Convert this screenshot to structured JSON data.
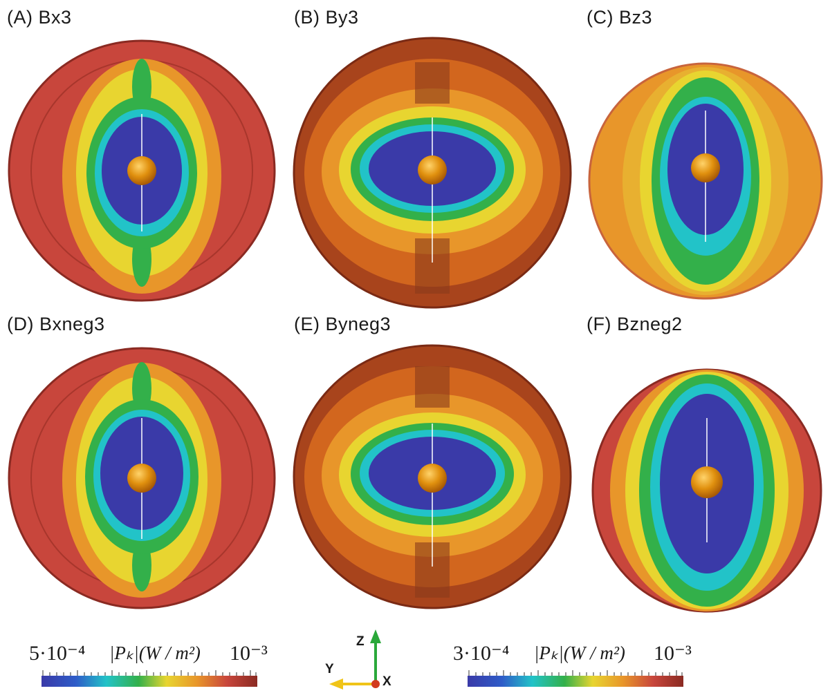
{
  "panels": [
    {
      "id": "A",
      "label": "(A) Bx3"
    },
    {
      "id": "B",
      "label": "(B) By3"
    },
    {
      "id": "C",
      "label": "(C) Bz3"
    },
    {
      "id": "D",
      "label": "(D) Bxneg3"
    },
    {
      "id": "E",
      "label": "(E) Byneg3"
    },
    {
      "id": "F",
      "label": "(F) Bzneg2"
    }
  ],
  "colorbars": [
    {
      "min_label": "5·10⁻⁴",
      "max_label": "10⁻³",
      "title": "|Pₖ|(W / m²)"
    },
    {
      "min_label": "3·10⁻⁴",
      "max_label": "10⁻³",
      "title": "|Pₖ|(W / m²)"
    }
  ],
  "axes": {
    "z": "Z",
    "y": "Y",
    "x": "X"
  },
  "colors": {
    "low": "#3a3aa8",
    "cyan": "#22c3c8",
    "green": "#33b04a",
    "yellow": "#e8d530",
    "orange": "#e8962a",
    "red": "#c8463c",
    "darkred": "#8a2a22",
    "sphere": "#e0900e",
    "z_axis": "#2aa83a",
    "y_axis": "#f0c418",
    "x_axis": "#d23a1e"
  }
}
